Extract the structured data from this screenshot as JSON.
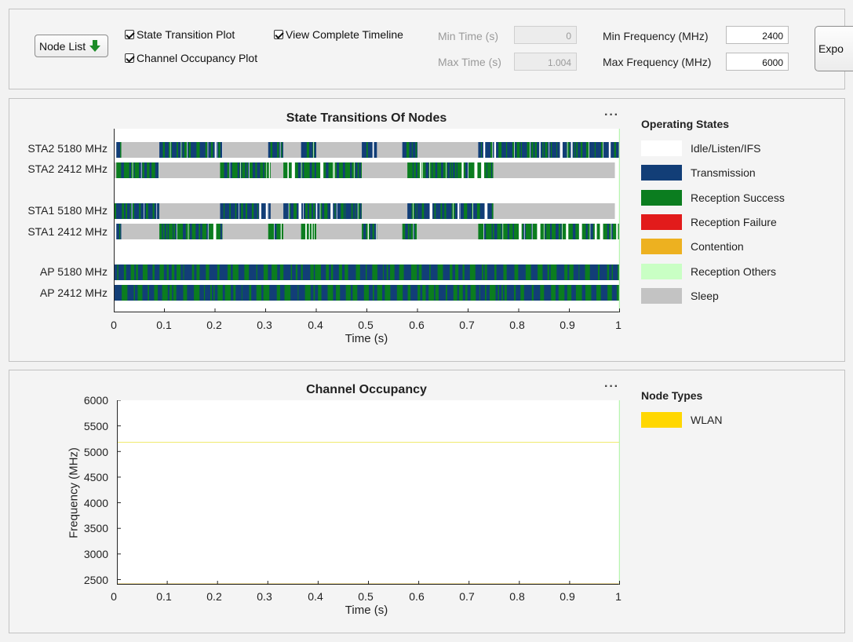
{
  "controls": {
    "node_list_label": "Node List",
    "checkboxes": {
      "state_transition": "State Transition Plot",
      "channel_occupancy": "Channel Occupancy Plot",
      "complete_timeline": "View Complete Timeline"
    },
    "min_time_label": "Min Time (s)",
    "min_time_value": "0",
    "max_time_label": "Max Time (s)",
    "max_time_value": "1.004",
    "min_freq_label": "Min Frequency (MHz)",
    "min_freq_value": "2400",
    "max_freq_label": "Max Frequency (MHz)",
    "max_freq_value": "6000",
    "export_label": "Expo"
  },
  "state_plot": {
    "title": "State Transitions Of Nodes",
    "more_label": "···",
    "rows": [
      "STA2 5180 MHz",
      "STA2 2412 MHz",
      "STA1 5180 MHz",
      "STA1 2412 MHz",
      "AP 5180 MHz",
      "AP 2412 MHz"
    ],
    "xlabel": "Time (s)",
    "xticks": [
      "0",
      "0.1",
      "0.2",
      "0.3",
      "0.4",
      "0.5",
      "0.6",
      "0.7",
      "0.8",
      "0.9",
      "1"
    ],
    "legend_title": "Operating States",
    "legend": [
      {
        "label": "Idle/Listen/IFS",
        "color": "#ffffff"
      },
      {
        "label": "Transmission",
        "color": "#123e77"
      },
      {
        "label": "Reception Success",
        "color": "#0b7d1f"
      },
      {
        "label": "Reception Failure",
        "color": "#e21b1b"
      },
      {
        "label": "Contention",
        "color": "#edb120"
      },
      {
        "label": "Reception Others",
        "color": "#c9ffc4"
      },
      {
        "label": "Sleep",
        "color": "#c3c3c3"
      }
    ]
  },
  "occupancy_plot": {
    "title": "Channel Occupancy",
    "more_label": "···",
    "ylabel": "Frequency (MHz)",
    "xlabel": "Time (s)",
    "xticks": [
      "0",
      "0.1",
      "0.2",
      "0.3",
      "0.4",
      "0.5",
      "0.6",
      "0.7",
      "0.8",
      "0.9",
      "1"
    ],
    "yticks": [
      "6000",
      "5500",
      "5000",
      "4500",
      "4000",
      "3500",
      "3000",
      "2500"
    ],
    "legend_title": "Node Types",
    "legend": [
      {
        "label": "WLAN",
        "color": "#ffd700"
      }
    ]
  },
  "chart_data": [
    {
      "type": "timeline",
      "title": "State Transitions Of Nodes",
      "xlabel": "Time (s)",
      "xlim": [
        0,
        1
      ],
      "rows": [
        "STA2 5180 MHz",
        "STA2 2412 MHz",
        "STA1 5180 MHz",
        "STA1 2412 MHz",
        "AP 5180 MHz",
        "AP 2412 MHz"
      ],
      "segments": {
        "STA2 5180 MHz": [
          [
            0,
            0.005,
            "Idle/Listen/IFS"
          ],
          [
            0.005,
            0.015,
            "Transmission"
          ],
          [
            0.015,
            0.09,
            "Sleep"
          ],
          [
            0.09,
            0.215,
            "Transmission"
          ],
          [
            0.215,
            0.305,
            "Sleep"
          ],
          [
            0.305,
            0.335,
            "Transmission"
          ],
          [
            0.335,
            0.37,
            "Sleep"
          ],
          [
            0.37,
            0.4,
            "Transmission"
          ],
          [
            0.4,
            0.49,
            "Sleep"
          ],
          [
            0.49,
            0.52,
            "Transmission"
          ],
          [
            0.52,
            0.57,
            "Sleep"
          ],
          [
            0.57,
            0.6,
            "Transmission"
          ],
          [
            0.6,
            0.72,
            "Sleep"
          ],
          [
            0.72,
            1.0,
            "Transmission"
          ]
        ],
        "STA2 2412 MHz": [
          [
            0,
            0.005,
            "Sleep"
          ],
          [
            0.005,
            0.09,
            "Reception Success"
          ],
          [
            0.09,
            0.21,
            "Sleep"
          ],
          [
            0.21,
            0.31,
            "Reception Success"
          ],
          [
            0.31,
            0.335,
            "Sleep"
          ],
          [
            0.335,
            0.49,
            "Reception Success"
          ],
          [
            0.49,
            0.58,
            "Sleep"
          ],
          [
            0.58,
            0.75,
            "Reception Success"
          ],
          [
            0.75,
            0.99,
            "Sleep"
          ]
        ],
        "STA1 5180 MHz": [
          [
            0,
            0.005,
            "Reception Success"
          ],
          [
            0.005,
            0.09,
            "Transmission"
          ],
          [
            0.09,
            0.21,
            "Sleep"
          ],
          [
            0.21,
            0.31,
            "Transmission"
          ],
          [
            0.31,
            0.335,
            "Sleep"
          ],
          [
            0.335,
            0.49,
            "Transmission"
          ],
          [
            0.49,
            0.58,
            "Sleep"
          ],
          [
            0.58,
            0.75,
            "Transmission"
          ],
          [
            0.75,
            0.99,
            "Sleep"
          ]
        ],
        "STA1 2412 MHz": [
          [
            0,
            0.005,
            "Idle/Listen/IFS"
          ],
          [
            0.005,
            0.015,
            "Transmission"
          ],
          [
            0.015,
            0.09,
            "Sleep"
          ],
          [
            0.09,
            0.215,
            "Reception Success"
          ],
          [
            0.215,
            0.305,
            "Sleep"
          ],
          [
            0.305,
            0.335,
            "Reception Success"
          ],
          [
            0.335,
            0.37,
            "Sleep"
          ],
          [
            0.37,
            0.4,
            "Reception Success"
          ],
          [
            0.4,
            0.49,
            "Sleep"
          ],
          [
            0.49,
            0.52,
            "Reception Success"
          ],
          [
            0.52,
            0.57,
            "Sleep"
          ],
          [
            0.57,
            0.6,
            "Reception Success"
          ],
          [
            0.6,
            0.72,
            "Sleep"
          ],
          [
            0.72,
            1.0,
            "Reception Success"
          ]
        ],
        "AP 5180 MHz": [
          [
            0,
            1.0,
            "Transmission / Reception Success (alternating)"
          ]
        ],
        "AP 2412 MHz": [
          [
            0,
            1.0,
            "Transmission / Reception Success (alternating)"
          ]
        ]
      },
      "legend": [
        "Idle/Listen/IFS",
        "Transmission",
        "Reception Success",
        "Reception Failure",
        "Contention",
        "Reception Others",
        "Sleep"
      ]
    },
    {
      "type": "area",
      "title": "Channel Occupancy",
      "xlabel": "Time (s)",
      "ylabel": "Frequency (MHz)",
      "xlim": [
        0,
        1
      ],
      "ylim": [
        2400,
        6000
      ],
      "series": [
        {
          "name": "WLAN",
          "points": [
            [
              0,
              5180
            ],
            [
              1,
              5180
            ]
          ]
        },
        {
          "name": "WLAN",
          "points": [
            [
              0,
              2412
            ],
            [
              1,
              2412
            ]
          ]
        }
      ]
    }
  ]
}
